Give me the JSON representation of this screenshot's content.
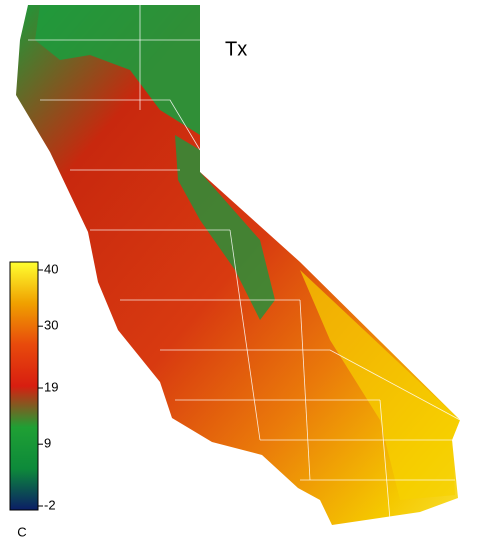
{
  "title": "Tx",
  "colorbar": {
    "ticks": [
      -2,
      9,
      19,
      30,
      40
    ],
    "unit": "C",
    "colors": [
      "#0b1d66",
      "#0d8a3a",
      "#1fa034",
      "#d81e10",
      "#e84a0c",
      "#f0a000",
      "#ffff30"
    ]
  }
}
